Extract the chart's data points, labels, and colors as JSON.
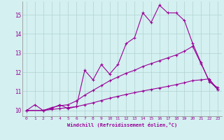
{
  "xlabel": "Windchill (Refroidissement éolien,°C)",
  "background_color": "#d4f0f0",
  "line_color": "#990099",
  "xlim": [
    -0.5,
    23.5
  ],
  "ylim": [
    9.7,
    15.7
  ],
  "yticks": [
    10,
    11,
    12,
    13,
    14,
    15
  ],
  "xticks": [
    0,
    1,
    2,
    3,
    4,
    5,
    6,
    7,
    8,
    9,
    10,
    11,
    12,
    13,
    14,
    15,
    16,
    17,
    18,
    19,
    20,
    21,
    22,
    23
  ],
  "series1_x": [
    0,
    1,
    2,
    3,
    4,
    5,
    6,
    7,
    8,
    9,
    10,
    11,
    12,
    13,
    14,
    15,
    16,
    17,
    18,
    19,
    20,
    21,
    22,
    23
  ],
  "series1_y": [
    10.0,
    10.3,
    10.0,
    10.1,
    10.3,
    10.1,
    10.2,
    12.1,
    11.6,
    12.4,
    11.9,
    12.4,
    13.5,
    13.8,
    15.1,
    14.6,
    15.5,
    15.1,
    15.1,
    14.7,
    13.5,
    12.5,
    11.5,
    11.2
  ],
  "series2_x": [
    0,
    2,
    3,
    4,
    5,
    6,
    7,
    8,
    9,
    10,
    11,
    12,
    13,
    14,
    15,
    16,
    17,
    18,
    19,
    20,
    21,
    22,
    23
  ],
  "series2_y": [
    10.0,
    10.0,
    10.15,
    10.25,
    10.3,
    10.5,
    10.8,
    11.05,
    11.3,
    11.55,
    11.75,
    11.95,
    12.1,
    12.3,
    12.45,
    12.6,
    12.75,
    12.9,
    13.1,
    13.35,
    12.45,
    11.55,
    11.1
  ],
  "series3_x": [
    0,
    2,
    3,
    4,
    5,
    6,
    7,
    8,
    9,
    10,
    11,
    12,
    13,
    14,
    15,
    16,
    17,
    18,
    19,
    20,
    21,
    22,
    23
  ],
  "series3_y": [
    10.0,
    10.0,
    10.05,
    10.1,
    10.15,
    10.2,
    10.3,
    10.4,
    10.52,
    10.64,
    10.74,
    10.84,
    10.93,
    11.02,
    11.1,
    11.18,
    11.26,
    11.35,
    11.45,
    11.56,
    11.6,
    11.65,
    11.1
  ]
}
